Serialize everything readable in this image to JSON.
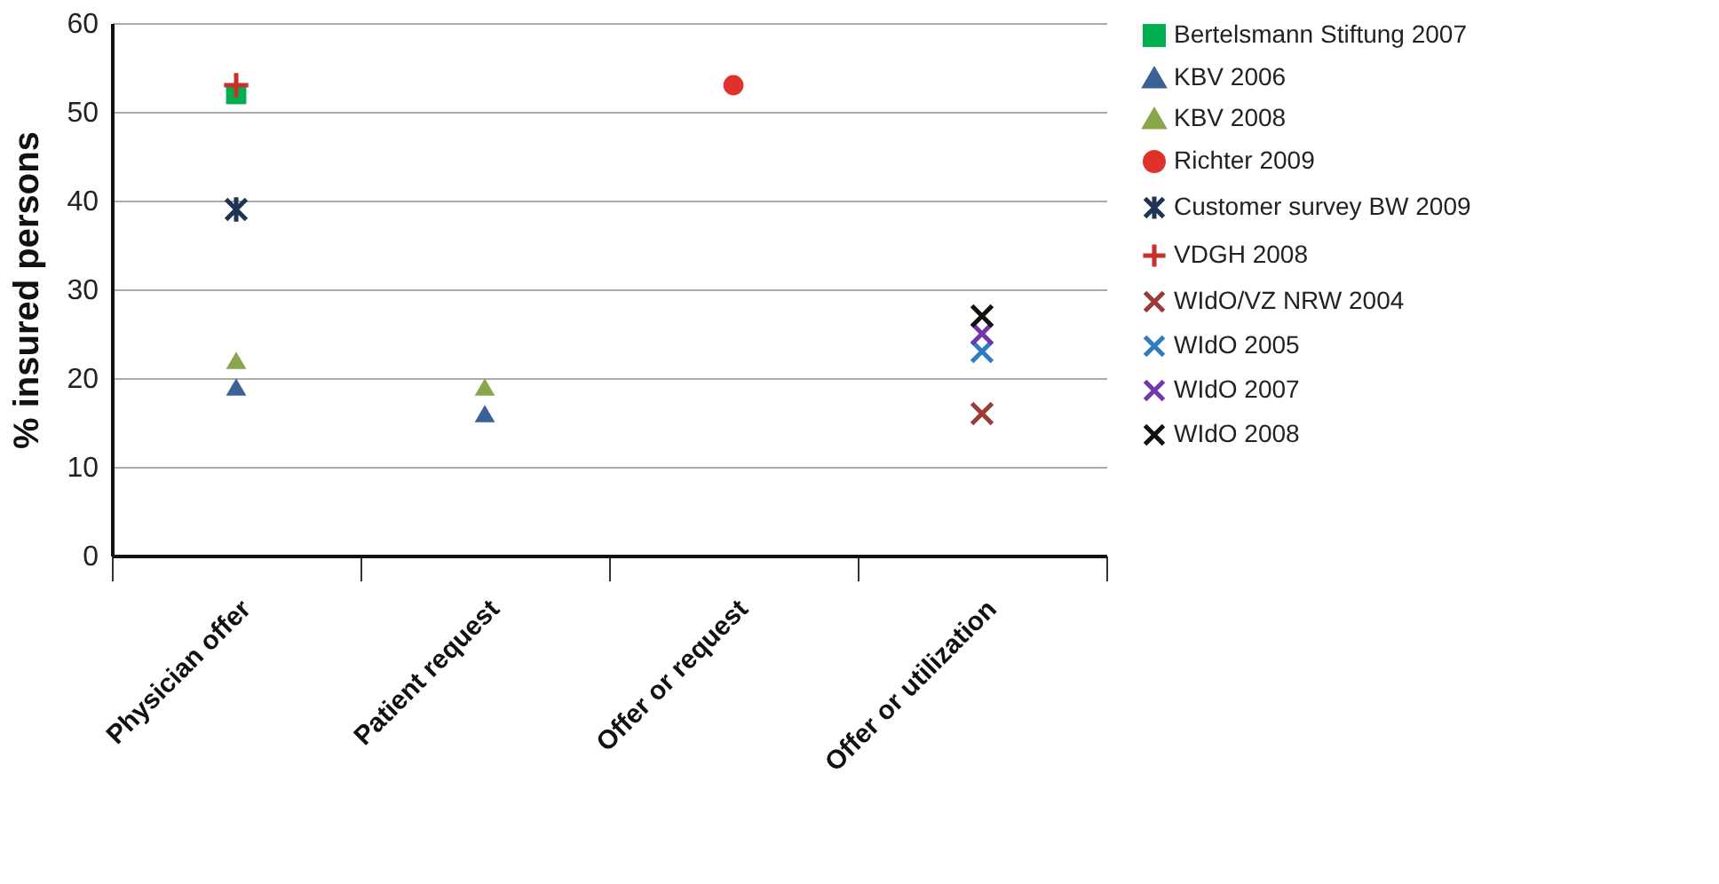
{
  "chart_data": {
    "type": "scatter",
    "ylabel": "% insured persons",
    "categories": [
      "Physician offer",
      "Patient request",
      "Offer or request",
      "Offer or utilization"
    ],
    "ylim": [
      0,
      60
    ],
    "yticks": [
      0,
      10,
      20,
      30,
      40,
      50,
      60
    ],
    "grid": "y",
    "legend": "top right",
    "series": [
      {
        "name": "Bertelsmann Stiftung 2007",
        "color": "#00b050",
        "marker": "square",
        "values": [
          52,
          null,
          null,
          null
        ]
      },
      {
        "name": "KBV 2006",
        "color": "#3a6299",
        "marker": "triangle",
        "values": [
          19,
          16,
          null,
          null
        ]
      },
      {
        "name": "KBV 2008",
        "color": "#8aa64a",
        "marker": "triangle",
        "values": [
          22,
          19,
          null,
          null
        ]
      },
      {
        "name": "Richter 2009",
        "color": "#e0322a",
        "marker": "circle",
        "values": [
          null,
          null,
          53,
          null
        ]
      },
      {
        "name": "Customer survey BW 2009",
        "color": "#1f3455",
        "marker": "cross",
        "values": [
          39,
          null,
          null,
          null
        ]
      },
      {
        "name": "VDGH 2008",
        "color": "#c8302c",
        "marker": "plus",
        "values": [
          53,
          null,
          null,
          null
        ]
      },
      {
        "name": "WIdO/VZ NRW 2004",
        "color": "#9b3b38",
        "marker": "x",
        "values": [
          null,
          null,
          null,
          16
        ]
      },
      {
        "name": "WIdO 2005",
        "color": "#2e7cc4",
        "marker": "x",
        "values": [
          null,
          null,
          null,
          23
        ]
      },
      {
        "name": "WIdO 2007",
        "color": "#7236a8",
        "marker": "x",
        "values": [
          null,
          null,
          null,
          25
        ]
      },
      {
        "name": "WIdO 2008",
        "color": "#111111",
        "marker": "x",
        "values": [
          null,
          null,
          null,
          27
        ]
      }
    ]
  }
}
